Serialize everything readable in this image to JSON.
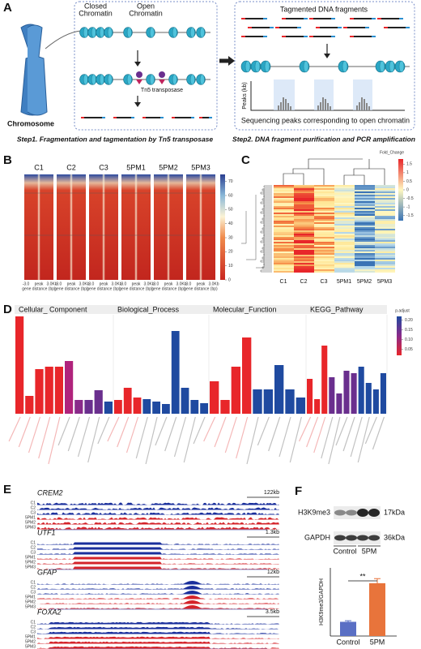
{
  "panel_a": {
    "letter": "A",
    "chromosome": "Chromosome",
    "closed_chromatin": [
      "Closed",
      "Chromatin"
    ],
    "open_chromatin": [
      "Open",
      "Chromatin"
    ],
    "tn5": "Tn5 transposase",
    "fragments": "Tagmented DNA fragments",
    "peaks_axis": "Peaks (kb)",
    "peaks_caption": "Sequencing peaks corresponding to open chromatin",
    "step1": "Step1. Fragmentation and tagmentation by Tn5 transposase",
    "step2": "Step2. DNA fragment purification and PCR amplification"
  },
  "panel_b": {
    "letter": "B",
    "samples": [
      "C1",
      "C2",
      "C3",
      "5PM1",
      "5PM2",
      "5PM3"
    ],
    "x_labels": [
      "-3.0",
      "peak",
      "3.0Kb"
    ],
    "x_title": "gene distance (bp)",
    "clim": [
      0,
      75
    ],
    "cticks": [
      0,
      10,
      20,
      30,
      40,
      50,
      60,
      70
    ]
  },
  "panel_c": {
    "letter": "C",
    "samples": [
      "C1",
      "C2",
      "C3",
      "5PM1",
      "5PM2",
      "5PM3"
    ],
    "legend_title": "Fold_Change",
    "clim": [
      -1.8,
      1.8
    ],
    "cticks": [
      1.5,
      1,
      0.5,
      0,
      -0.5,
      -1,
      -1.5
    ]
  },
  "panel_d": {
    "letter": "D",
    "type": "bar",
    "ylim": [
      0,
      6
    ],
    "legend_title": "p.adjust",
    "legend_ticks": [
      {
        "value": 0.2,
        "label": "0.20"
      },
      {
        "value": 0.15,
        "label": "0.15"
      },
      {
        "value": 0.1,
        "label": "0.10"
      },
      {
        "value": 0.05,
        "label": "0.05"
      }
    ],
    "groups": [
      {
        "title": "Cellular_ Component",
        "values": [
          6,
          1.1,
          2.75,
          2.9,
          2.9,
          3.25,
          0.85,
          0.85,
          1.45,
          0.75
        ],
        "colors": [
          "#e8262a",
          "#e8262a",
          "#e8262a",
          "#e8262a",
          "#e8262a",
          "#b0237c",
          "#8a2a8a",
          "#6a2f8e",
          "#6a2f8e",
          "#1f4aa0"
        ]
      },
      {
        "title": "Biological_Process",
        "values": [
          0.85,
          1.6,
          1.0,
          0.9,
          0.75,
          0.6,
          5.1,
          1.6,
          0.85,
          0.65
        ],
        "colors": [
          "#e8262a",
          "#e8262a",
          "#e8262a",
          "#1f4aa0",
          "#1f4aa0",
          "#1f4aa0",
          "#1f4aa0",
          "#1f4aa0",
          "#1f4aa0",
          "#1f4aa0"
        ]
      },
      {
        "title": "Molecular_Function",
        "values": [
          2.0,
          0.85,
          2.9,
          4.7,
          1.5,
          1.5,
          3.0,
          1.5,
          1.0
        ],
        "colors": [
          "#e8262a",
          "#e8262a",
          "#e8262a",
          "#e8262a",
          "#1f4aa0",
          "#1f4aa0",
          "#1f4aa0",
          "#1f4aa0",
          "#1f4aa0"
        ]
      },
      {
        "title": "KEGG_Pathway",
        "values": [
          2.15,
          0.9,
          4.2,
          2.25,
          1.25,
          2.65,
          2.5,
          2.9,
          1.9,
          1.5,
          2.5
        ],
        "colors": [
          "#e8262a",
          "#e8262a",
          "#e8262a",
          "#6a2f8e",
          "#6a2f8e",
          "#6a2f8e",
          "#6a2f8e",
          "#1f4aa0",
          "#1f4aa0",
          "#1f4aa0",
          "#1f4aa0"
        ]
      }
    ]
  },
  "panel_e": {
    "letter": "E",
    "samples": [
      "C1",
      "C2",
      "C3",
      "5PM1",
      "5PM2",
      "5PM3"
    ],
    "genes": [
      {
        "name": "CREM2",
        "scale": "122kb"
      },
      {
        "name": "UTF1",
        "scale": "1.3kb"
      },
      {
        "name": "GFAP",
        "scale": "12kb"
      },
      {
        "name": "FOXA2",
        "scale": "3.5kb"
      }
    ]
  },
  "panel_f": {
    "letter": "F",
    "blot_rows": [
      {
        "protein": "H3K9me3",
        "size": "17kDa"
      },
      {
        "protein": "GAPDH",
        "size": "36kDa"
      }
    ],
    "groups": [
      "Control",
      "5PM"
    ],
    "type": "bar",
    "y_label": "H3K9me3/GAPDH",
    "categories": [
      "Control",
      "5PM"
    ],
    "values": [
      0.25,
      0.93
    ],
    "errors": [
      0.02,
      0.08
    ],
    "colors": [
      "#5a6fc4",
      "#e8743b"
    ],
    "ylim": [
      0,
      1.2
    ],
    "significance": "**"
  }
}
